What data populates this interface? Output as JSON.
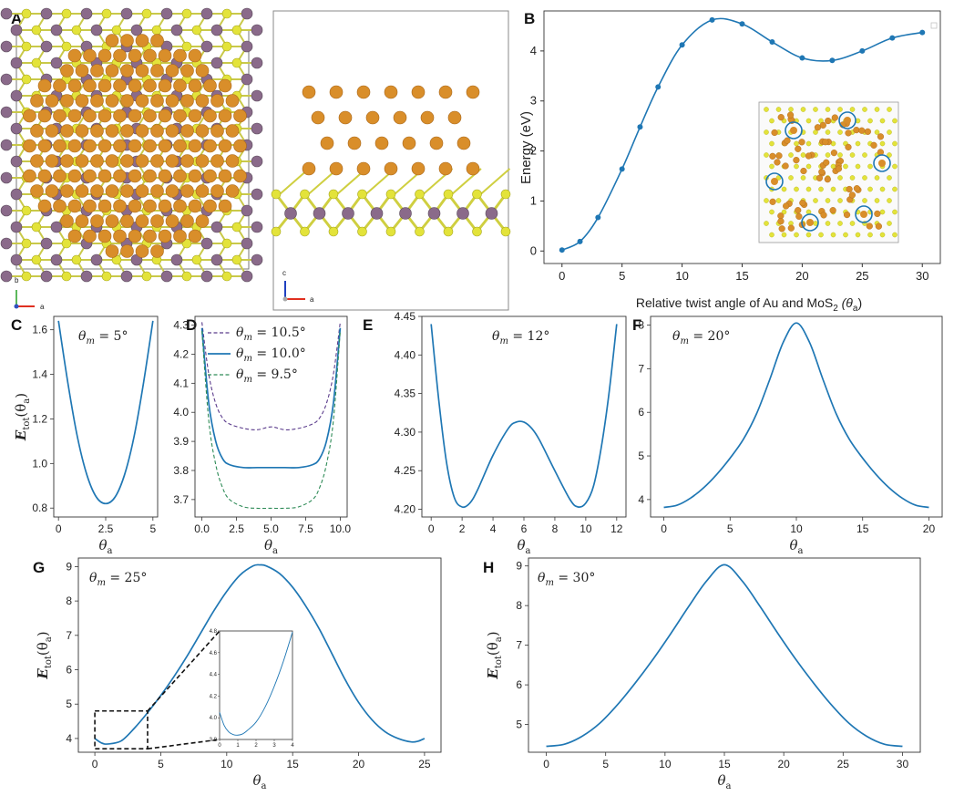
{
  "panels": {
    "A": "A",
    "B": "B",
    "C": "C",
    "D": "D",
    "E": "E",
    "F": "F",
    "G": "G",
    "H": "H"
  },
  "structure": {
    "atom_colors": {
      "gold": "#d98e2a",
      "sulfur": "#e3e33a",
      "molybdenum": "#8a6a8a"
    },
    "top_axes": {
      "b": "b",
      "a": "a"
    },
    "side_axes": {
      "c": "c",
      "a": "a"
    }
  },
  "colors": {
    "line": "#1f77b4",
    "purple": "#5b3c8c",
    "green": "#2e8b57",
    "circle": "#1f77b4"
  },
  "chart_data": [
    {
      "id": "B",
      "type": "scatter",
      "xlabel_prefix": "Relative twist angle of Au and MoS",
      "xlabel_sub": "2",
      "xlabel_suffix": " (θ",
      "xlabel_sub2": "a",
      "xlabel_end": ")",
      "ylabel": "Energy (eV)",
      "xlim": [
        -1.5,
        31.5
      ],
      "ylim": [
        -0.25,
        4.8
      ],
      "xticks": [
        0,
        5,
        10,
        15,
        20,
        25,
        30
      ],
      "yticks": [
        0,
        1,
        2,
        3,
        4
      ],
      "x": [
        0,
        1.5,
        3,
        5,
        6.5,
        8,
        10,
        12.5,
        15,
        17.5,
        20,
        22.5,
        25,
        27.5,
        30
      ],
      "y": [
        0.02,
        0.19,
        0.67,
        1.64,
        2.48,
        3.28,
        4.12,
        4.62,
        4.54,
        4.18,
        3.86,
        3.81,
        4.0,
        4.26,
        4.37
      ]
    },
    {
      "id": "C",
      "type": "line",
      "annotation": "θm = 5°",
      "xlabel": "θa",
      "ylabel": "Etot(θa)",
      "xlim": [
        -0.25,
        5.25
      ],
      "ylim": [
        0.76,
        1.66
      ],
      "xticks": [
        0,
        2.5,
        5
      ],
      "xticklabels": [
        "0",
        "2.5",
        "5"
      ],
      "yticks": [
        0.8,
        1.0,
        1.2,
        1.4,
        1.6
      ],
      "yticklabels": [
        "0.8",
        "1.0",
        "1.2",
        "1.4",
        "1.6"
      ],
      "series": [
        {
          "x": [
            0,
            0.5,
            1.0,
            1.5,
            2.0,
            2.5,
            3.0,
            3.5,
            4.0,
            4.5,
            5.0
          ],
          "y": [
            1.64,
            1.36,
            1.12,
            0.95,
            0.85,
            0.82,
            0.85,
            0.95,
            1.12,
            1.36,
            1.64
          ]
        }
      ]
    },
    {
      "id": "D",
      "type": "line",
      "xlabel": "θa",
      "xlim": [
        -0.5,
        10.5
      ],
      "ylim": [
        3.64,
        4.33
      ],
      "xticks": [
        0,
        2.5,
        5,
        7.5,
        10
      ],
      "xticklabels": [
        "0.0",
        "2.5",
        "5.0",
        "7.5",
        "10.0"
      ],
      "yticks": [
        3.7,
        3.8,
        3.9,
        4.0,
        4.1,
        4.2,
        4.3
      ],
      "yticklabels": [
        "3.7",
        "3.8",
        "3.9",
        "4.0",
        "4.1",
        "4.2",
        "4.3"
      ],
      "series": [
        {
          "name": "θm = 10.5°",
          "style": "dashed",
          "color": "#5b3c8c",
          "x": [
            0,
            0.5,
            1,
            1.5,
            2,
            3,
            4,
            5,
            6,
            7,
            8,
            8.5,
            9,
            9.5,
            10
          ],
          "y": [
            4.31,
            4.13,
            4.03,
            3.98,
            3.96,
            3.945,
            3.94,
            3.95,
            3.94,
            3.945,
            3.96,
            3.98,
            4.03,
            4.13,
            4.31
          ]
        },
        {
          "name": "θm = 10.0°",
          "style": "solid",
          "color": "#1f77b4",
          "x": [
            0,
            0.5,
            1,
            1.5,
            2,
            3,
            4,
            5,
            6,
            7,
            8,
            8.5,
            9,
            9.5,
            10
          ],
          "y": [
            4.29,
            4.03,
            3.9,
            3.84,
            3.82,
            3.81,
            3.81,
            3.81,
            3.81,
            3.81,
            3.82,
            3.84,
            3.9,
            4.03,
            4.29
          ]
        },
        {
          "name": "θm =  9.5°",
          "style": "dashed",
          "color": "#2e8b57",
          "x": [
            0,
            0.5,
            1,
            1.5,
            2,
            3,
            4,
            5,
            6,
            7,
            8,
            8.5,
            9,
            9.5,
            10
          ],
          "y": [
            4.28,
            3.97,
            3.82,
            3.74,
            3.7,
            3.675,
            3.67,
            3.67,
            3.67,
            3.675,
            3.7,
            3.74,
            3.82,
            3.97,
            4.28
          ]
        }
      ]
    },
    {
      "id": "E",
      "type": "line",
      "annotation": "θm = 12°",
      "xlabel": "θa",
      "xlim": [
        -0.6,
        12.6
      ],
      "ylim": [
        4.19,
        4.45
      ],
      "xticks": [
        0,
        2,
        4,
        6,
        8,
        10,
        12
      ],
      "xticklabels": [
        "0",
        "2",
        "4",
        "6",
        "8",
        "10",
        "12"
      ],
      "yticks": [
        4.2,
        4.25,
        4.3,
        4.35,
        4.4,
        4.45
      ],
      "yticklabels": [
        "4.20",
        "4.25",
        "4.30",
        "4.35",
        "4.40",
        "4.45"
      ],
      "series": [
        {
          "x": [
            0,
            0.5,
            1,
            1.5,
            2,
            2.5,
            3,
            4,
            5,
            5.5,
            6,
            6.5,
            7,
            8,
            9,
            9.5,
            10,
            10.5,
            11,
            11.5,
            12
          ],
          "y": [
            4.44,
            4.34,
            4.26,
            4.215,
            4.203,
            4.208,
            4.225,
            4.27,
            4.305,
            4.313,
            4.313,
            4.305,
            4.29,
            4.25,
            4.212,
            4.203,
            4.208,
            4.23,
            4.28,
            4.35,
            4.44
          ]
        }
      ]
    },
    {
      "id": "F",
      "type": "line",
      "annotation": "θm = 20°",
      "xlabel": "θa",
      "xlim": [
        -1,
        21
      ],
      "ylim": [
        3.6,
        8.2
      ],
      "xticks": [
        0,
        5,
        10,
        15,
        20
      ],
      "xticklabels": [
        "0",
        "5",
        "10",
        "15",
        "20"
      ],
      "yticks": [
        4,
        5,
        6,
        7,
        8
      ],
      "yticklabels": [
        "4",
        "5",
        "6",
        "7",
        "8"
      ],
      "series": [
        {
          "x": [
            0,
            1,
            2,
            3,
            4,
            5,
            6,
            7,
            8,
            9,
            10,
            11,
            12,
            13,
            14,
            15,
            16,
            17,
            18,
            19,
            20
          ],
          "y": [
            3.82,
            3.87,
            4.03,
            4.27,
            4.58,
            4.95,
            5.38,
            5.97,
            6.76,
            7.6,
            8.05,
            7.6,
            6.76,
            5.97,
            5.38,
            4.95,
            4.58,
            4.27,
            4.03,
            3.87,
            3.82
          ]
        }
      ]
    },
    {
      "id": "G",
      "type": "line",
      "annotation": "θm = 25°",
      "xlabel": "θa",
      "ylabel": "Etot(θa)",
      "xlim": [
        -1.25,
        26.25
      ],
      "ylim": [
        3.6,
        9.25
      ],
      "xticks": [
        0,
        5,
        10,
        15,
        20,
        25
      ],
      "xticklabels": [
        "0",
        "5",
        "10",
        "15",
        "20",
        "25"
      ],
      "yticks": [
        4,
        5,
        6,
        7,
        8,
        9
      ],
      "yticklabels": [
        "4",
        "5",
        "6",
        "7",
        "8",
        "9"
      ],
      "zoom_box": {
        "x": [
          0,
          4
        ],
        "y": [
          3.7,
          4.8
        ]
      },
      "series": [
        {
          "x": [
            0,
            0.5,
            1,
            2,
            3,
            4,
            5,
            6,
            7,
            8,
            9,
            10,
            11,
            12,
            12.5,
            13,
            14,
            15,
            16,
            17,
            18,
            19,
            20,
            21,
            22,
            23,
            24,
            24.5,
            25
          ],
          "y": [
            4.0,
            3.87,
            3.84,
            3.93,
            4.3,
            4.75,
            5.25,
            5.8,
            6.4,
            7.05,
            7.7,
            8.28,
            8.75,
            9.02,
            9.05,
            9.02,
            8.8,
            8.4,
            7.85,
            7.2,
            6.45,
            5.7,
            5.05,
            4.55,
            4.2,
            4.0,
            3.9,
            3.92,
            4.0
          ]
        }
      ]
    },
    {
      "id": "G-inset",
      "type": "line",
      "xlim": [
        0,
        4
      ],
      "ylim": [
        3.8,
        4.8
      ],
      "xticks": [
        0,
        1,
        2,
        3,
        4
      ],
      "xticklabels": [
        "0",
        "1",
        "2",
        "3",
        "4"
      ],
      "yticks": [
        3.8,
        4.0,
        4.2,
        4.4,
        4.6,
        4.8
      ],
      "yticklabels": [
        "3.8",
        "4.0",
        "4.2",
        "4.4",
        "4.6",
        "4.8"
      ],
      "series": [
        {
          "x": [
            0,
            0.25,
            0.5,
            0.75,
            1,
            1.25,
            1.5,
            2,
            2.5,
            3,
            3.5,
            4
          ],
          "y": [
            4.05,
            3.93,
            3.87,
            3.845,
            3.84,
            3.85,
            3.88,
            3.96,
            4.1,
            4.29,
            4.52,
            4.79
          ]
        }
      ]
    },
    {
      "id": "H",
      "type": "line",
      "annotation": "θm = 30°",
      "xlabel": "θa",
      "ylabel": "Etot(θa)",
      "xlim": [
        -1.5,
        31.5
      ],
      "ylim": [
        4.3,
        9.2
      ],
      "xticks": [
        0,
        5,
        10,
        15,
        20,
        25,
        30
      ],
      "xticklabels": [
        "0",
        "5",
        "10",
        "15",
        "20",
        "25",
        "30"
      ],
      "yticks": [
        5,
        6,
        7,
        8,
        9
      ],
      "yticklabels": [
        "5",
        "6",
        "7",
        "8",
        "9"
      ],
      "series": [
        {
          "x": [
            0,
            1.5,
            3,
            4.5,
            6,
            7.5,
            9,
            10.5,
            12,
            13.5,
            15,
            16.5,
            18,
            19.5,
            21,
            22.5,
            24,
            25.5,
            27,
            28.5,
            30
          ],
          "y": [
            4.45,
            4.5,
            4.7,
            5.03,
            5.5,
            6.05,
            6.65,
            7.3,
            7.98,
            8.62,
            9.03,
            8.62,
            7.98,
            7.3,
            6.65,
            6.05,
            5.5,
            5.03,
            4.7,
            4.5,
            4.45
          ]
        }
      ]
    }
  ]
}
